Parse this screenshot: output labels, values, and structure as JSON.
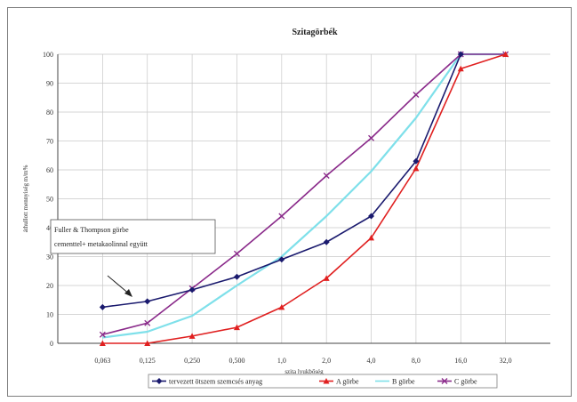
{
  "chart_data": {
    "type": "line",
    "title": "Szitagörbék",
    "xlabel": "szita lyukbőség",
    "ylabel": "áthullott mennyiség m/m%",
    "categories": [
      "0,063",
      "0,125",
      "0,250",
      "0,500",
      "1,0",
      "2,0",
      "4,0",
      "8,0",
      "16,0",
      "32,0"
    ],
    "y_ticks": [
      "0",
      "10",
      "20",
      "30",
      "40",
      "50",
      "60",
      "70",
      "80",
      "90",
      "100"
    ],
    "ylim": [
      0,
      100
    ],
    "grid": true,
    "legend_position": "bottom",
    "series": [
      {
        "name": "tervezett ötszem szemcsés anyag",
        "color": "#1a1a6e",
        "marker": "diamond",
        "values": [
          12.5,
          14.5,
          18.5,
          23,
          29,
          35,
          44,
          63,
          100,
          null
        ]
      },
      {
        "name": "A görbe",
        "color": "#e02020",
        "marker": "triangle",
        "values": [
          0,
          0,
          2.5,
          5.5,
          12.5,
          22.5,
          36.5,
          60.5,
          95,
          100
        ]
      },
      {
        "name": "B görbe",
        "color": "#7fe0ea",
        "marker": "none",
        "values": [
          2,
          4,
          9.5,
          20,
          30,
          44,
          59.5,
          78,
          100,
          100
        ]
      },
      {
        "name": "C görbe",
        "color": "#8a2a8a",
        "marker": "x",
        "values": [
          3,
          7,
          19,
          31,
          44,
          58,
          71,
          86,
          100,
          100
        ]
      }
    ],
    "annotation": {
      "lines": [
        "Fuller & Thompson görbe",
        "cementtel+ metakaolinnal együtt"
      ]
    }
  }
}
